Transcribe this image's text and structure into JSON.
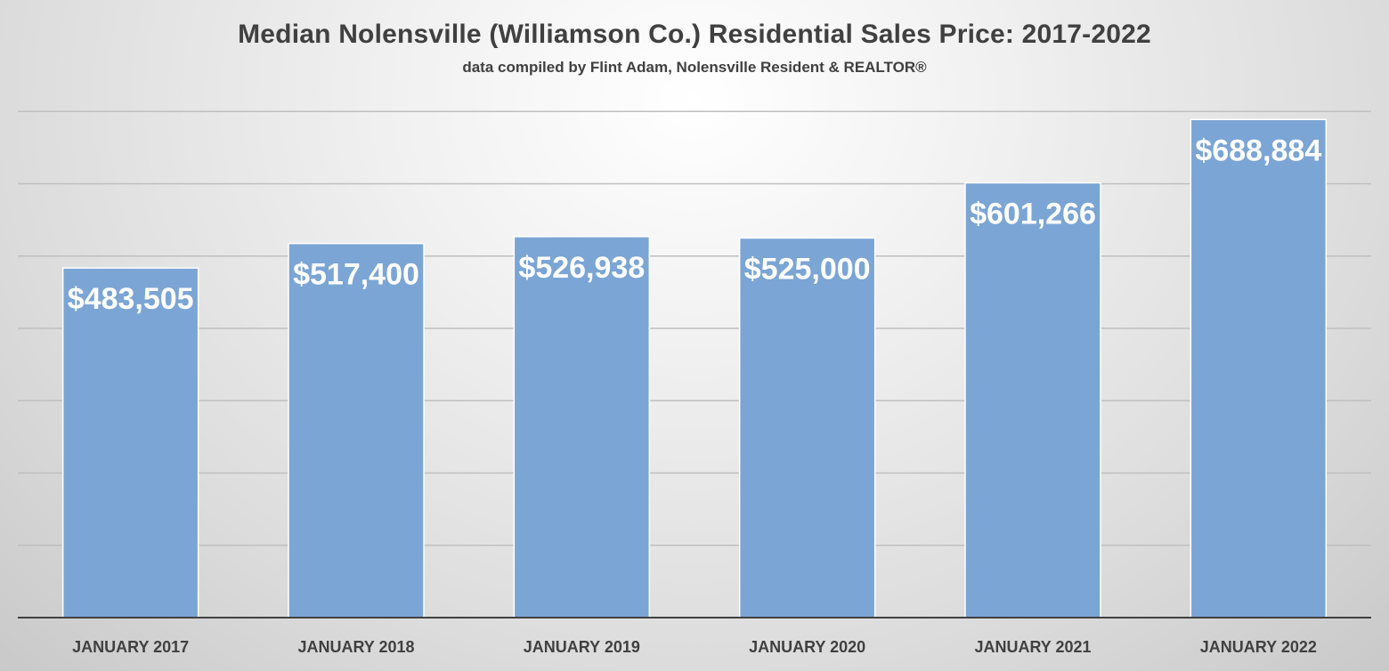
{
  "chart_data": {
    "type": "bar",
    "title": "Median Nolensville (Williamson Co.) Residential Sales Price: 2017-2022",
    "subtitle": "data compiled by Flint Adam, Nolensville Resident & REALTOR®",
    "categories": [
      "JANUARY 2017",
      "JANUARY 2018",
      "JANUARY 2019",
      "JANUARY 2020",
      "JANUARY 2021",
      "JANUARY 2022"
    ],
    "values": [
      483505,
      517400,
      526938,
      525000,
      601266,
      688884
    ],
    "data_labels": [
      "$483,505",
      "$517,400",
      "$526,938",
      "$525,000",
      "$601,266",
      "$688,884"
    ],
    "xlabel": "",
    "ylabel": "",
    "ylim": [
      0,
      800000
    ],
    "grid": true,
    "legend": "none",
    "colors": {
      "bar": "#7ba5d4",
      "bar_edge": "#ffffff",
      "grid": "#bfbfbf",
      "axis": "#404040",
      "text": "#404040",
      "label": "#ffffff"
    }
  }
}
